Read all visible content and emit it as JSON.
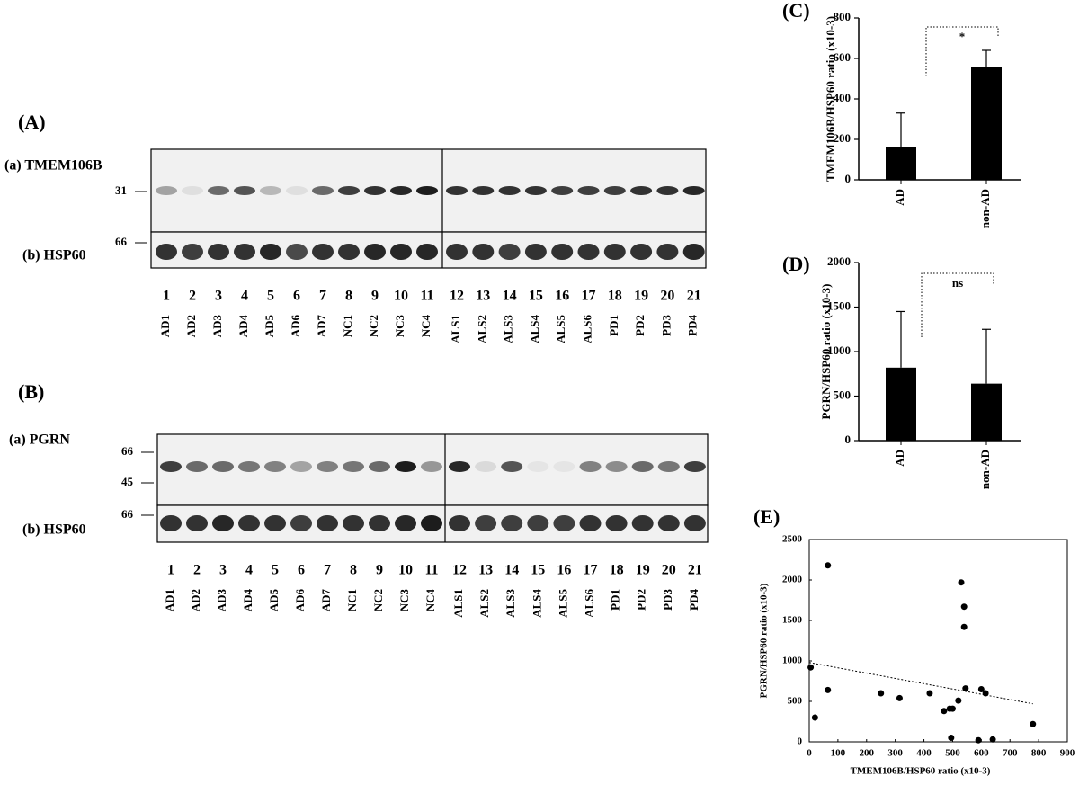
{
  "panels": [
    {
      "label": "(A)",
      "blots": [
        {
          "label": "(a) TMEM106B",
          "markers": [
            "31"
          ]
        },
        {
          "label": "(b) HSP60",
          "markers": [
            "66"
          ]
        }
      ],
      "lanes": [
        "1",
        "2",
        "3",
        "4",
        "5",
        "6",
        "7",
        "8",
        "9",
        "10",
        "11",
        "12",
        "13",
        "14",
        "15",
        "16",
        "17",
        "18",
        "19",
        "20",
        "21"
      ],
      "samples": [
        "AD1",
        "AD2",
        "AD3",
        "AD4",
        "AD5",
        "AD6",
        "AD7",
        "NC1",
        "NC2",
        "NC3",
        "NC4",
        "ALS1",
        "ALS2",
        "ALS3",
        "ALS4",
        "ALS5",
        "ALS6",
        "PD1",
        "PD2",
        "PD3",
        "PD4"
      ]
    },
    {
      "label": "(B)",
      "blots": [
        {
          "label": "(a) PGRN",
          "markers": [
            "66",
            "45"
          ]
        },
        {
          "label": "(b) HSP60",
          "markers": [
            "66"
          ]
        }
      ],
      "lanes": [
        "1",
        "2",
        "3",
        "4",
        "5",
        "6",
        "7",
        "8",
        "9",
        "10",
        "11",
        "12",
        "13",
        "14",
        "15",
        "16",
        "17",
        "18",
        "19",
        "20",
        "21"
      ],
      "samples": [
        "AD1",
        "AD2",
        "AD3",
        "AD4",
        "AD5",
        "AD6",
        "AD7",
        "NC1",
        "NC2",
        "NC3",
        "NC4",
        "ALS1",
        "ALS2",
        "ALS3",
        "ALS4",
        "ALS5",
        "ALS6",
        "PD1",
        "PD2",
        "PD3",
        "PD4"
      ]
    }
  ],
  "chart_data": [
    {
      "type": "bar",
      "panel_label": "(C)",
      "ylabel": "TMEM106B/HSP60 ratio (x10-3)",
      "categories": [
        "AD",
        "non-AD"
      ],
      "values": [
        160,
        560
      ],
      "errors": [
        170,
        80
      ],
      "color": "#000000",
      "ylim": [
        0,
        800
      ],
      "yticks": [
        0,
        200,
        400,
        600,
        800
      ],
      "annotation": "*"
    },
    {
      "type": "bar",
      "panel_label": "(D)",
      "ylabel": "PGRN/HSP60 ratio (x10-3)",
      "categories": [
        "AD",
        "non-AD"
      ],
      "values": [
        820,
        640
      ],
      "errors": [
        630,
        610
      ],
      "color": "#000000",
      "ylim": [
        0,
        2000
      ],
      "yticks": [
        0,
        500,
        1000,
        1500,
        2000
      ],
      "annotation": "ns"
    },
    {
      "type": "scatter",
      "panel_label": "(E)",
      "xlabel": "TMEM106B/HSP60 ratio (x10-3)",
      "ylabel": "PGRN/HSP60 ratio (x10-3)",
      "x": [
        5,
        20,
        65,
        65,
        250,
        315,
        420,
        470,
        490,
        495,
        500,
        520,
        530,
        540,
        540,
        545,
        590,
        600,
        615,
        640,
        780
      ],
      "y": [
        920,
        300,
        2180,
        640,
        600,
        540,
        600,
        380,
        410,
        50,
        410,
        510,
        1970,
        1670,
        1420,
        660,
        20,
        650,
        600,
        30,
        220
      ],
      "color": "#000000",
      "trendline": {
        "x": [
          0,
          780
        ],
        "y": [
          980,
          470
        ]
      },
      "xlim": [
        0,
        900
      ],
      "xticks": [
        0,
        100,
        200,
        300,
        400,
        500,
        600,
        700,
        800,
        900
      ],
      "ylim": [
        0,
        2500
      ],
      "yticks": [
        0,
        500,
        1000,
        1500,
        2000,
        2500
      ]
    }
  ]
}
